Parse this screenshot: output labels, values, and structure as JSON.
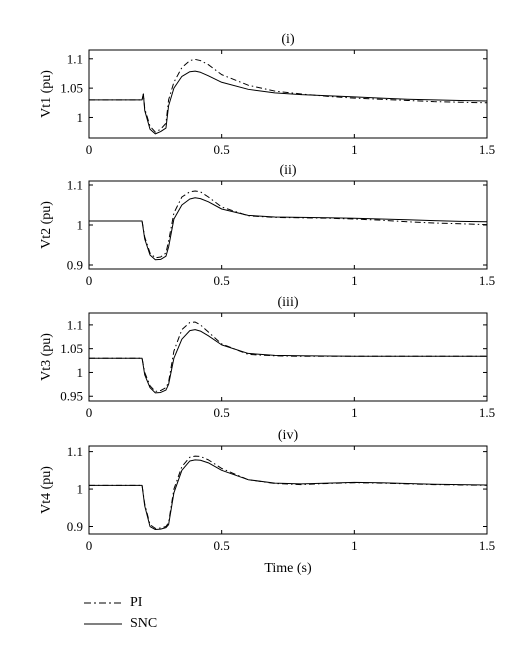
{
  "chart_data": [
    {
      "type": "line",
      "title": "(i)",
      "xlabel": "",
      "ylabel": "Vt1 (pu)",
      "xlim": [
        0,
        1.5
      ],
      "ylim": [
        0.965,
        1.115
      ],
      "xticks": [
        "0",
        "0.5",
        "1",
        "1.5"
      ],
      "yticks": [
        "1",
        "1.05",
        "1.1"
      ],
      "ytick_values": [
        1.0,
        1.05,
        1.1
      ],
      "series": [
        {
          "name": "PI",
          "style": "dashdot",
          "x": [
            0,
            0.2,
            0.205,
            0.21,
            0.23,
            0.25,
            0.27,
            0.29,
            0.3,
            0.32,
            0.35,
            0.38,
            0.4,
            0.42,
            0.45,
            0.5,
            0.6,
            0.7,
            0.8,
            0.9,
            1.0,
            1.1,
            1.2,
            1.3,
            1.4,
            1.5
          ],
          "y": [
            1.03,
            1.03,
            1.04,
            1.015,
            0.985,
            0.975,
            0.98,
            0.99,
            1.03,
            1.06,
            1.085,
            1.097,
            1.099,
            1.097,
            1.09,
            1.073,
            1.055,
            1.045,
            1.04,
            1.036,
            1.033,
            1.031,
            1.029,
            1.027,
            1.026,
            1.025
          ]
        },
        {
          "name": "SNC",
          "style": "solid",
          "x": [
            0,
            0.2,
            0.205,
            0.21,
            0.23,
            0.25,
            0.27,
            0.29,
            0.3,
            0.32,
            0.35,
            0.38,
            0.4,
            0.42,
            0.45,
            0.5,
            0.6,
            0.7,
            0.8,
            0.9,
            1.0,
            1.1,
            1.2,
            1.3,
            1.4,
            1.5
          ],
          "y": [
            1.03,
            1.03,
            1.04,
            1.012,
            0.98,
            0.972,
            0.976,
            0.982,
            1.02,
            1.05,
            1.07,
            1.078,
            1.079,
            1.077,
            1.071,
            1.06,
            1.048,
            1.042,
            1.039,
            1.037,
            1.035,
            1.033,
            1.031,
            1.03,
            1.029,
            1.028
          ]
        }
      ]
    },
    {
      "type": "line",
      "title": "(ii)",
      "xlabel": "",
      "ylabel": "Vt2 (pu)",
      "xlim": [
        0,
        1.5
      ],
      "ylim": [
        0.89,
        1.11
      ],
      "xticks": [
        "0",
        "0.5",
        "1",
        "1.5"
      ],
      "yticks": [
        "0.9",
        "1",
        "1.1"
      ],
      "ytick_values": [
        0.9,
        1.0,
        1.1
      ],
      "series": [
        {
          "name": "PI",
          "style": "dashdot",
          "x": [
            0,
            0.2,
            0.21,
            0.23,
            0.25,
            0.27,
            0.29,
            0.3,
            0.32,
            0.35,
            0.38,
            0.4,
            0.42,
            0.45,
            0.5,
            0.6,
            0.7,
            0.8,
            0.9,
            1.0,
            1.1,
            1.2,
            1.3,
            1.4,
            1.5
          ],
          "y": [
            1.01,
            1.01,
            0.97,
            0.93,
            0.918,
            0.92,
            0.93,
            0.96,
            1.03,
            1.07,
            1.083,
            1.085,
            1.083,
            1.07,
            1.045,
            1.023,
            1.019,
            1.018,
            1.017,
            1.015,
            1.012,
            1.008,
            1.005,
            1.003,
            1.001
          ]
        },
        {
          "name": "SNC",
          "style": "solid",
          "x": [
            0,
            0.2,
            0.21,
            0.23,
            0.25,
            0.27,
            0.29,
            0.3,
            0.32,
            0.35,
            0.38,
            0.4,
            0.42,
            0.45,
            0.5,
            0.6,
            0.7,
            0.8,
            0.9,
            1.0,
            1.1,
            1.2,
            1.3,
            1.4,
            1.5
          ],
          "y": [
            1.01,
            1.01,
            0.965,
            0.925,
            0.913,
            0.914,
            0.922,
            0.945,
            1.015,
            1.05,
            1.065,
            1.068,
            1.066,
            1.058,
            1.04,
            1.024,
            1.02,
            1.019,
            1.018,
            1.017,
            1.015,
            1.013,
            1.011,
            1.009,
            1.008
          ]
        }
      ]
    },
    {
      "type": "line",
      "title": "(iii)",
      "xlabel": "",
      "ylabel": "Vt3 (pu)",
      "xlim": [
        0,
        1.5
      ],
      "ylim": [
        0.94,
        1.125
      ],
      "xticks": [
        "0",
        "0.5",
        "1",
        "1.5"
      ],
      "yticks": [
        "0.95",
        "1",
        "1.05",
        "1.1"
      ],
      "ytick_values": [
        0.95,
        1.0,
        1.05,
        1.1
      ],
      "series": [
        {
          "name": "PI",
          "style": "dashdot",
          "x": [
            0,
            0.2,
            0.21,
            0.23,
            0.25,
            0.27,
            0.29,
            0.3,
            0.32,
            0.35,
            0.38,
            0.4,
            0.42,
            0.45,
            0.5,
            0.6,
            0.7,
            0.8,
            1.0,
            1.2,
            1.5
          ],
          "y": [
            1.03,
            1.03,
            1.0,
            0.972,
            0.96,
            0.962,
            0.968,
            0.98,
            1.045,
            1.09,
            1.105,
            1.106,
            1.1,
            1.085,
            1.06,
            1.038,
            1.035,
            1.034,
            1.034,
            1.034,
            1.034
          ]
        },
        {
          "name": "SNC",
          "style": "solid",
          "x": [
            0,
            0.2,
            0.21,
            0.23,
            0.25,
            0.27,
            0.29,
            0.3,
            0.32,
            0.35,
            0.38,
            0.4,
            0.42,
            0.45,
            0.5,
            0.6,
            0.7,
            0.8,
            1.0,
            1.2,
            1.5
          ],
          "y": [
            1.03,
            1.03,
            0.995,
            0.968,
            0.957,
            0.958,
            0.963,
            0.975,
            1.03,
            1.07,
            1.088,
            1.09,
            1.087,
            1.077,
            1.058,
            1.04,
            1.036,
            1.035,
            1.034,
            1.034,
            1.034
          ]
        }
      ]
    },
    {
      "type": "line",
      "title": "(iv)",
      "xlabel": "Time (s)",
      "ylabel": "Vt4 (pu)",
      "xlim": [
        0,
        1.5
      ],
      "ylim": [
        0.88,
        1.115
      ],
      "xticks": [
        "0",
        "0.5",
        "1",
        "1.5"
      ],
      "yticks": [
        "0.9",
        "1",
        "1.1"
      ],
      "ytick_values": [
        0.9,
        1.0,
        1.1
      ],
      "series": [
        {
          "name": "PI",
          "style": "dashdot",
          "x": [
            0,
            0.2,
            0.21,
            0.23,
            0.25,
            0.27,
            0.29,
            0.3,
            0.32,
            0.35,
            0.38,
            0.4,
            0.42,
            0.45,
            0.5,
            0.6,
            0.7,
            0.8,
            0.9,
            1.0,
            1.1,
            1.2,
            1.3,
            1.4,
            1.5
          ],
          "y": [
            1.01,
            1.01,
            0.96,
            0.905,
            0.895,
            0.896,
            0.9,
            0.91,
            1.0,
            1.06,
            1.085,
            1.088,
            1.087,
            1.078,
            1.055,
            1.025,
            1.015,
            1.012,
            1.015,
            1.017,
            1.016,
            1.014,
            1.012,
            1.011,
            1.01
          ]
        },
        {
          "name": "SNC",
          "style": "solid",
          "x": [
            0,
            0.2,
            0.21,
            0.23,
            0.25,
            0.27,
            0.29,
            0.3,
            0.32,
            0.35,
            0.38,
            0.4,
            0.42,
            0.45,
            0.5,
            0.6,
            0.7,
            0.8,
            0.9,
            1.0,
            1.1,
            1.2,
            1.3,
            1.4,
            1.5
          ],
          "y": [
            1.01,
            1.01,
            0.955,
            0.9,
            0.892,
            0.893,
            0.897,
            0.905,
            0.99,
            1.05,
            1.075,
            1.078,
            1.077,
            1.07,
            1.05,
            1.025,
            1.016,
            1.014,
            1.016,
            1.018,
            1.017,
            1.015,
            1.013,
            1.012,
            1.011
          ]
        }
      ]
    }
  ],
  "legend": [
    {
      "label": "PI",
      "style": "dashdot"
    },
    {
      "label": "SNC",
      "style": "solid"
    }
  ]
}
